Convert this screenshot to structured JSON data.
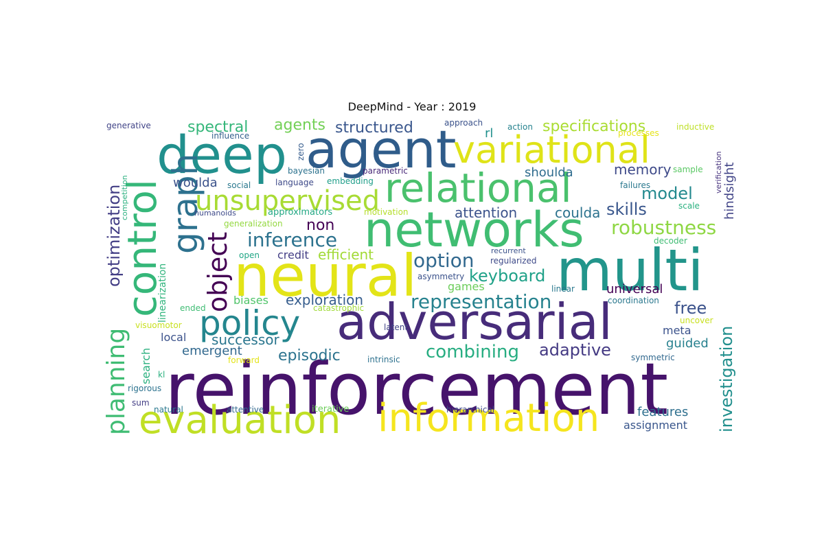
{
  "title": "DeepMind - Year : 2019",
  "colors": {
    "dark_purple": "#481b6d",
    "deep_blue": "#33638d",
    "teal": "#21918c",
    "green": "#3fbc73",
    "light_green": "#a5db36",
    "yellow": "#e4e419",
    "navy": "#31688e"
  },
  "words": {
    "reinforcement": "reinforcement",
    "multi": "multi",
    "neural": "neural",
    "networks": "networks",
    "adversarial": "adversarial",
    "deep": "deep",
    "agent": "agent",
    "relational": "relational",
    "variational": "variational",
    "control": "control",
    "information": "information",
    "evaluation": "evaluation",
    "policy": "policy",
    "graph": "graph",
    "unsupervised": "unsupervised",
    "object": "object",
    "planning": "planning",
    "representation": "representation",
    "inference": "inference",
    "option": "option",
    "robustness": "robustness",
    "keyboard": "keyboard",
    "combining": "combining",
    "optimization": "optimization",
    "investigation": "investigation",
    "adaptive": "adaptive",
    "model": "model",
    "skills": "skills",
    "specifications": "specifications",
    "structured": "structured",
    "spectral": "spectral",
    "agents": "agents",
    "episodic": "episodic",
    "free": "free",
    "exploration": "exploration",
    "efficient": "efficient",
    "successor": "successor",
    "hindsight": "hindsight",
    "non": "non",
    "attention": "attention",
    "memory": "memory",
    "shoulda": "shoulda",
    "coulda": "coulda",
    "woulda": "woulda",
    "emergent": "emergent",
    "features": "features",
    "universal": "universal",
    "assignment": "assignment",
    "guided": "guided",
    "meta": "meta",
    "games": "games",
    "biases": "biases",
    "credit": "credit",
    "local": "local",
    "search": "search",
    "rl": "rl",
    "linearization": "linearization",
    "generative": "generative",
    "influence": "influence",
    "zero": "zero",
    "approach": "approach",
    "action": "action",
    "inductive": "inductive",
    "processes": "processes",
    "verification": "verification",
    "bayesian": "bayesian",
    "parametric": "parametric",
    "sample": "sample",
    "language": "language",
    "embedding": "embedding",
    "social": "social",
    "failures": "failures",
    "competition": "competition",
    "humanoids": "humanoids",
    "approximators": "approximators",
    "motivation": "motivation",
    "scale": "scale",
    "generalization": "generalization",
    "decoder": "decoder",
    "recurrent": "recurrent",
    "open": "open",
    "regularized": "regularized",
    "asymmetry": "asymmetry",
    "linear": "linear",
    "coordination": "coordination",
    "ended": "ended",
    "catastrophic": "catastrophic",
    "uncover": "uncover",
    "visuomotor": "visuomotor",
    "latent": "latent",
    "forward": "forward",
    "intrinsic": "intrinsic",
    "symmetric": "symmetric",
    "kl": "kl",
    "rigorous": "rigorous",
    "sum": "sum",
    "natural": "natural",
    "attentive": "attentive",
    "iterative": "iterative",
    "hierarchical": "hierarchical"
  }
}
